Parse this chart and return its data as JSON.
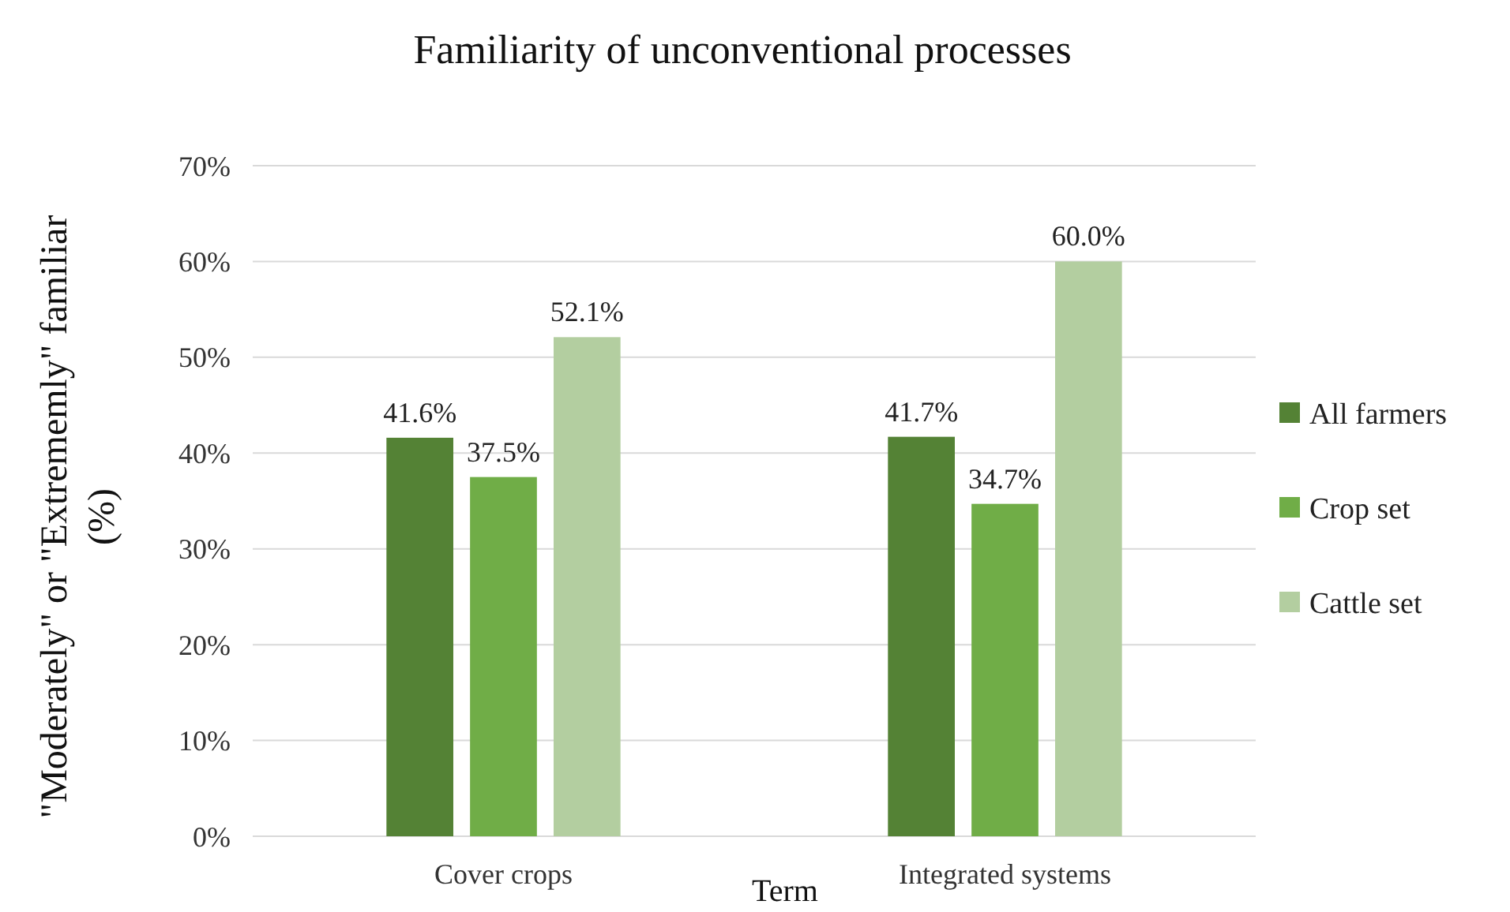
{
  "chart_data": {
    "type": "bar",
    "title": "Familiarity of unconventional processes",
    "xlabel": "Term",
    "ylabel": "\"Moderately\" or \"Extrememly\" familiar\n(%)",
    "categories": [
      "Cover crops",
      "Integrated systems"
    ],
    "series": [
      {
        "name": "All farmers",
        "color": "#548235",
        "values": [
          41.6,
          41.7
        ],
        "value_labels": [
          "41.6%",
          "41.7%"
        ]
      },
      {
        "name": "Crop set",
        "color": "#70ad47",
        "values": [
          37.5,
          34.7
        ],
        "value_labels": [
          "37.5%",
          "34.7%"
        ]
      },
      {
        "name": "Cattle set",
        "color": "#b3cea0",
        "values": [
          52.1,
          60.0
        ],
        "value_labels": [
          "52.1%",
          "60.0%"
        ]
      }
    ],
    "ylim": [
      0,
      70
    ],
    "yticks": [
      {
        "value": 0,
        "label": "0%"
      },
      {
        "value": 10,
        "label": "10%"
      },
      {
        "value": 20,
        "label": "20%"
      },
      {
        "value": 30,
        "label": "30%"
      },
      {
        "value": 40,
        "label": "40%"
      },
      {
        "value": 50,
        "label": "50%"
      },
      {
        "value": 60,
        "label": "60%"
      },
      {
        "value": 70,
        "label": "70%"
      }
    ],
    "grid": "y",
    "legend": "right"
  }
}
